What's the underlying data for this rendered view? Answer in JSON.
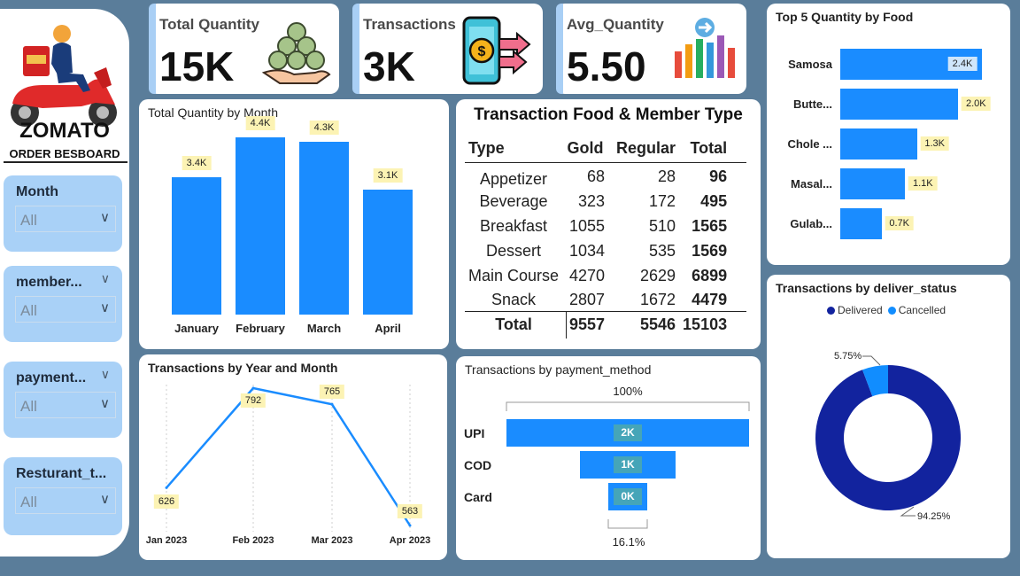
{
  "brand": {
    "name": "ZOMATO",
    "subtitle": "ORDER BESBOARD"
  },
  "slicers": [
    {
      "title": "Month",
      "value": "All"
    },
    {
      "title": "member...",
      "value": "All"
    },
    {
      "title": "payment...",
      "value": "All"
    },
    {
      "title": "Resturant_t...",
      "value": "All"
    }
  ],
  "kpis": {
    "quantity": {
      "title": "Total Quantity",
      "value": "15K"
    },
    "transactions": {
      "title": "Transactions",
      "value": "3K"
    },
    "avg": {
      "title": "Avg_Quantity",
      "value": "5.50"
    }
  },
  "matrix": {
    "title": "Transaction Food & Member Type",
    "headers": [
      "Type",
      "Gold",
      "Regular",
      "Total"
    ],
    "rows": [
      [
        "Appetizer",
        "68",
        "28",
        "96"
      ],
      [
        "Beverage",
        "323",
        "172",
        "495"
      ],
      [
        "Breakfast",
        "1055",
        "510",
        "1565"
      ],
      [
        "Dessert",
        "1034",
        "535",
        "1569"
      ],
      [
        "Main Course",
        "4270",
        "2629",
        "6899"
      ],
      [
        "Snack",
        "2807",
        "1672",
        "4479"
      ]
    ],
    "total": [
      "Total",
      "9557",
      "5546",
      "15103"
    ]
  },
  "colors": {
    "bar": "#1a8cff",
    "donut_main": "#12239e",
    "donut_small": "#118dff",
    "label_bg": "#fcf3b4"
  },
  "chart_data": [
    {
      "type": "bar",
      "title": "Total Quantity by Month",
      "categories": [
        "January",
        "February",
        "March",
        "April"
      ],
      "values": [
        3400,
        4400,
        4300,
        3100
      ],
      "labels": [
        "3.4K",
        "4.4K",
        "4.3K",
        "3.1K"
      ],
      "ylim": [
        0,
        4400
      ]
    },
    {
      "type": "line",
      "title": "Transactions by Year and Month",
      "categories": [
        "Jan 2023",
        "Feb 2023",
        "Mar 2023",
        "Apr 2023"
      ],
      "values": [
        626,
        792,
        765,
        563
      ],
      "ylim": [
        563,
        792
      ]
    },
    {
      "type": "bar",
      "orientation": "horizontal",
      "title": "Top 5 Quantity by Food",
      "categories": [
        "Samosa",
        "Butte...",
        "Chole ...",
        "Masal...",
        "Gulab..."
      ],
      "values": [
        2400,
        2000,
        1300,
        1100,
        700
      ],
      "labels": [
        "2.4K",
        "2.0K",
        "1.3K",
        "1.1K",
        "0.7K"
      ],
      "xlim": [
        0,
        2400
      ]
    },
    {
      "type": "bar",
      "orientation": "funnel",
      "title": "Transactions by payment_method",
      "categories": [
        "UPI",
        "COD",
        "Card"
      ],
      "values": [
        1710,
        680,
        275
      ],
      "labels": [
        "2K",
        "1K",
        "0K"
      ],
      "top_label": "100%",
      "bottom_label": "16.1%"
    },
    {
      "type": "pie",
      "title": "Transactions by deliver_status",
      "series": [
        {
          "name": "Delivered",
          "value": 94.25,
          "label": "94.25%"
        },
        {
          "name": "Cancelled",
          "value": 5.75,
          "label": "5.75%"
        }
      ],
      "legend": "top"
    }
  ]
}
